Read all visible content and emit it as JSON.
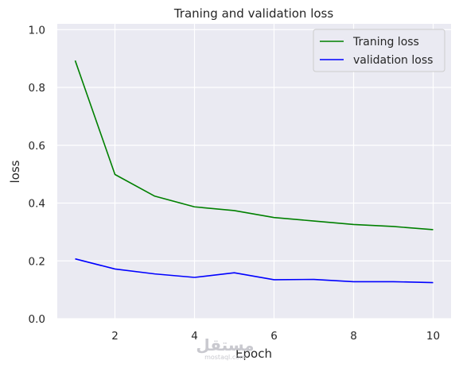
{
  "chart_data": {
    "type": "line",
    "title": "Traning and validation loss",
    "xlabel": "Epoch",
    "ylabel": "loss",
    "x": [
      1,
      2,
      3,
      4,
      5,
      6,
      7,
      8,
      9,
      10
    ],
    "series": [
      {
        "name": "Traning loss",
        "color": "#008000",
        "values": [
          0.893,
          0.499,
          0.424,
          0.387,
          0.374,
          0.35,
          0.338,
          0.326,
          0.319,
          0.308
        ]
      },
      {
        "name": "validation loss",
        "color": "#0000ff",
        "values": [
          0.207,
          0.172,
          0.155,
          0.143,
          0.159,
          0.135,
          0.136,
          0.128,
          0.128,
          0.125
        ]
      }
    ],
    "xlim": [
      0.55,
      10.45
    ],
    "ylim": [
      0.0,
      1.02
    ],
    "xticks": [
      "2",
      "4",
      "6",
      "8",
      "10"
    ],
    "yticks": [
      "0.0",
      "0.2",
      "0.4",
      "0.6",
      "0.8",
      "1.0"
    ],
    "grid": true,
    "legend_position": "top-right",
    "background": "#eaeaf2"
  },
  "watermark": {
    "text": "مستقل",
    "subtext": "mostaql.com"
  }
}
